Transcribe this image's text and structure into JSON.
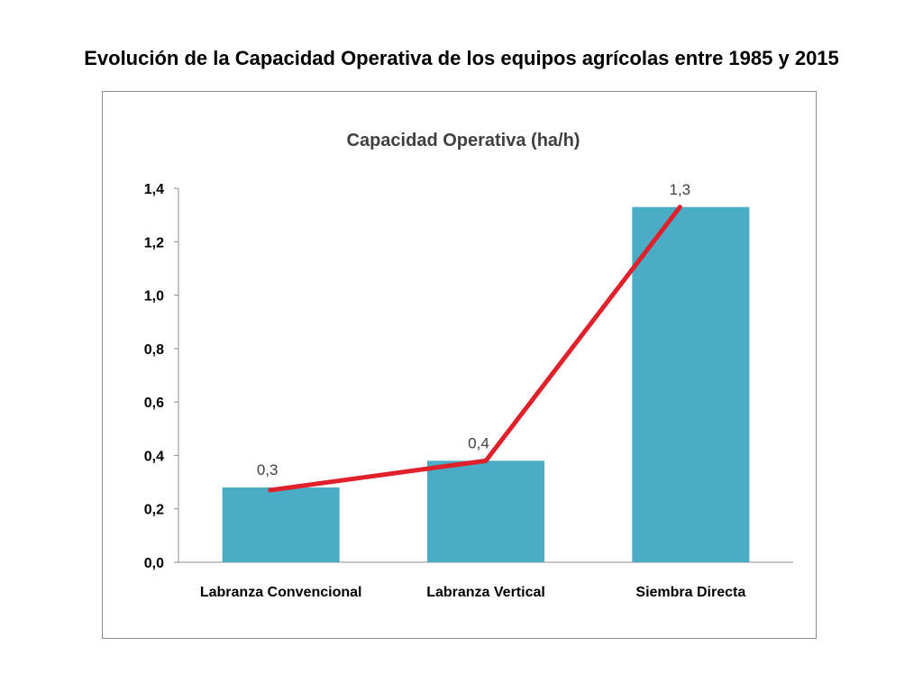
{
  "slide": {
    "title": "Evolución de la Capacidad Operativa de los equipos agrícolas entre 1985 y 2015"
  },
  "colors": {
    "bar": "#4bacc6",
    "trend_line": "#e0202a",
    "axis": "#8c8c8c"
  },
  "chart_data": {
    "type": "bar",
    "title": "Capacidad Operativa (ha/h)",
    "xlabel": "",
    "ylabel": "",
    "categories": [
      "Labranza Convencional",
      "Labranza Vertical",
      "Siembra Directa"
    ],
    "values": [
      0.28,
      0.38,
      1.33
    ],
    "data_labels": [
      "0,3",
      "0,4",
      "1,3"
    ],
    "ylim": [
      0,
      1.4
    ],
    "y_ticks": [
      "0,0",
      "0,2",
      "0,4",
      "0,6",
      "0,8",
      "1,0",
      "1,2",
      "1,4"
    ],
    "grid": false,
    "legend": "none",
    "overlay": {
      "type": "line",
      "values": [
        0.27,
        0.38,
        1.33
      ]
    }
  }
}
